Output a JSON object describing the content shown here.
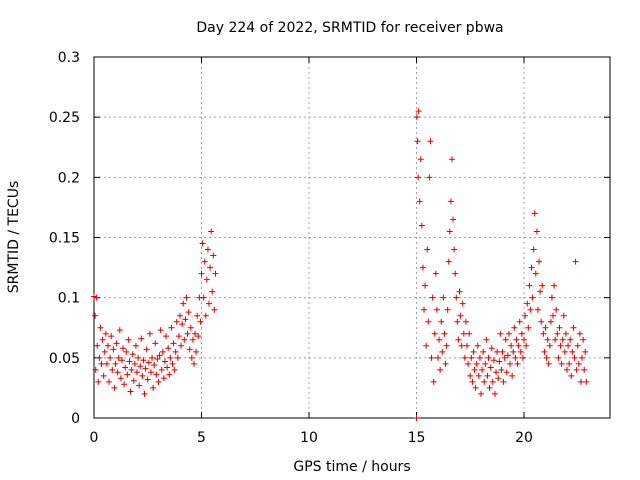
{
  "chart_data": {
    "type": "scatter",
    "title": "Day 224 of 2022, SRMTID for receiver pbwa",
    "xlabel": "GPS time / hours",
    "ylabel": "SRMTID / TECUs",
    "xlim": [
      0,
      24
    ],
    "ylim": [
      0,
      0.3
    ],
    "xticks": [
      0,
      5,
      10,
      15,
      20
    ],
    "xtick_labels": [
      "0",
      "5",
      "10",
      "15",
      "20"
    ],
    "yticks": [
      0,
      0.05,
      0.1,
      0.15,
      0.2,
      0.25,
      0.3
    ],
    "ytick_labels": [
      "0",
      "0.05",
      "0.1",
      "0.15",
      "0.2",
      "0.25",
      "0.3"
    ],
    "grid": true,
    "marker": "+",
    "series": [
      {
        "name": "SRMTID",
        "color": "#e00000",
        "points": [
          [
            0.0,
            0.101
          ],
          [
            0.05,
            0.085
          ],
          [
            0.08,
            0.04
          ],
          [
            0.12,
            0.1
          ],
          [
            0.15,
            0.06
          ],
          [
            0.2,
            0.03
          ],
          [
            0.25,
            0.05
          ],
          [
            0.3,
            0.075
          ],
          [
            0.35,
            0.045
          ],
          [
            0.4,
            0.065
          ],
          [
            0.45,
            0.035
          ],
          [
            0.5,
            0.055
          ],
          [
            0.55,
            0.07
          ],
          [
            0.6,
            0.045
          ],
          [
            0.65,
            0.06
          ],
          [
            0.7,
            0.03
          ],
          [
            0.75,
            0.05
          ],
          [
            0.8,
            0.068
          ],
          [
            0.85,
            0.04
          ],
          [
            0.9,
            0.057
          ],
          [
            0.95,
            0.025
          ],
          [
            1.0,
            0.045
          ],
          [
            1.05,
            0.062
          ],
          [
            1.1,
            0.038
          ],
          [
            1.15,
            0.05
          ],
          [
            1.2,
            0.073
          ],
          [
            1.25,
            0.033
          ],
          [
            1.3,
            0.048
          ],
          [
            1.35,
            0.058
          ],
          [
            1.4,
            0.028
          ],
          [
            1.45,
            0.042
          ],
          [
            1.5,
            0.055
          ],
          [
            1.55,
            0.036
          ],
          [
            1.6,
            0.065
          ],
          [
            1.65,
            0.047
          ],
          [
            1.7,
            0.022
          ],
          [
            1.75,
            0.04
          ],
          [
            1.8,
            0.053
          ],
          [
            1.85,
            0.031
          ],
          [
            1.9,
            0.045
          ],
          [
            1.95,
            0.06
          ],
          [
            2.0,
            0.038
          ],
          [
            2.05,
            0.05
          ],
          [
            2.1,
            0.027
          ],
          [
            2.15,
            0.043
          ],
          [
            2.2,
            0.066
          ],
          [
            2.25,
            0.035
          ],
          [
            2.3,
            0.048
          ],
          [
            2.35,
            0.02
          ],
          [
            2.4,
            0.041
          ],
          [
            2.45,
            0.057
          ],
          [
            2.5,
            0.032
          ],
          [
            2.55,
            0.046
          ],
          [
            2.6,
            0.07
          ],
          [
            2.65,
            0.038
          ],
          [
            2.7,
            0.05
          ],
          [
            2.75,
            0.025
          ],
          [
            2.8,
            0.044
          ],
          [
            2.85,
            0.062
          ],
          [
            2.9,
            0.036
          ],
          [
            2.95,
            0.049
          ],
          [
            3.0,
            0.03
          ],
          [
            3.05,
            0.052
          ],
          [
            3.1,
            0.073
          ],
          [
            3.15,
            0.04
          ],
          [
            3.2,
            0.055
          ],
          [
            3.25,
            0.033
          ],
          [
            3.3,
            0.047
          ],
          [
            3.35,
            0.068
          ],
          [
            3.4,
            0.042
          ],
          [
            3.45,
            0.058
          ],
          [
            3.5,
            0.036
          ],
          [
            3.55,
            0.05
          ],
          [
            3.6,
            0.075
          ],
          [
            3.65,
            0.045
          ],
          [
            3.7,
            0.062
          ],
          [
            3.75,
            0.04
          ],
          [
            3.8,
            0.055
          ],
          [
            3.85,
            0.08
          ],
          [
            3.9,
            0.05
          ],
          [
            3.95,
            0.068
          ],
          [
            4.0,
            0.085
          ],
          [
            4.05,
            0.06
          ],
          [
            4.1,
            0.078
          ],
          [
            4.15,
            0.095
          ],
          [
            4.2,
            0.065
          ],
          [
            4.25,
            0.082
          ],
          [
            4.3,
            0.1
          ],
          [
            4.35,
            0.07
          ],
          [
            4.4,
            0.088
          ],
          [
            4.45,
            0.057
          ],
          [
            4.5,
            0.075
          ],
          [
            4.55,
            0.05
          ],
          [
            4.6,
            0.065
          ],
          [
            4.65,
            0.045
          ],
          [
            4.7,
            0.07
          ],
          [
            4.75,
            0.055
          ],
          [
            4.8,
            0.085
          ],
          [
            4.85,
            0.068
          ],
          [
            4.9,
            0.1
          ],
          [
            4.95,
            0.08
          ],
          [
            5.0,
            0.12
          ],
          [
            5.05,
            0.145
          ],
          [
            5.1,
            0.1
          ],
          [
            5.15,
            0.13
          ],
          [
            5.2,
            0.085
          ],
          [
            5.25,
            0.115
          ],
          [
            5.3,
            0.14
          ],
          [
            5.35,
            0.095
          ],
          [
            5.4,
            0.125
          ],
          [
            5.45,
            0.155
          ],
          [
            5.5,
            0.105
          ],
          [
            5.55,
            0.135
          ],
          [
            5.6,
            0.09
          ],
          [
            5.65,
            0.12
          ],
          [
            15.0,
            0.0
          ],
          [
            15.02,
            0.25
          ],
          [
            15.05,
            0.23
          ],
          [
            15.08,
            0.2
          ],
          [
            15.1,
            0.255
          ],
          [
            15.15,
            0.18
          ],
          [
            15.2,
            0.215
          ],
          [
            15.25,
            0.16
          ],
          [
            15.3,
            0.125
          ],
          [
            15.35,
            0.09
          ],
          [
            15.4,
            0.11
          ],
          [
            15.45,
            0.06
          ],
          [
            15.5,
            0.14
          ],
          [
            15.55,
            0.08
          ],
          [
            15.6,
            0.2
          ],
          [
            15.65,
            0.23
          ],
          [
            15.7,
            0.05
          ],
          [
            15.75,
            0.1
          ],
          [
            15.8,
            0.03
          ],
          [
            15.85,
            0.07
          ],
          [
            15.9,
            0.12
          ],
          [
            15.95,
            0.09
          ],
          [
            16.0,
            0.05
          ],
          [
            16.05,
            0.065
          ],
          [
            16.1,
            0.04
          ],
          [
            16.15,
            0.08
          ],
          [
            16.2,
            0.055
          ],
          [
            16.25,
            0.1
          ],
          [
            16.3,
            0.07
          ],
          [
            16.35,
            0.045
          ],
          [
            16.4,
            0.06
          ],
          [
            16.45,
            0.09
          ],
          [
            16.5,
            0.13
          ],
          [
            16.55,
            0.155
          ],
          [
            16.6,
            0.18
          ],
          [
            16.65,
            0.215
          ],
          [
            16.7,
            0.165
          ],
          [
            16.75,
            0.14
          ],
          [
            16.8,
            0.12
          ],
          [
            16.85,
            0.1
          ],
          [
            16.9,
            0.08
          ],
          [
            16.95,
            0.065
          ],
          [
            17.0,
            0.105
          ],
          [
            17.05,
            0.085
          ],
          [
            17.1,
            0.06
          ],
          [
            17.15,
            0.095
          ],
          [
            17.2,
            0.07
          ],
          [
            17.25,
            0.05
          ],
          [
            17.3,
            0.08
          ],
          [
            17.35,
            0.06
          ],
          [
            17.4,
            0.045
          ],
          [
            17.45,
            0.07
          ],
          [
            17.5,
            0.035
          ],
          [
            17.55,
            0.05
          ],
          [
            17.6,
            0.03
          ],
          [
            17.65,
            0.055
          ],
          [
            17.7,
            0.04
          ],
          [
            17.75,
            0.025
          ],
          [
            17.8,
            0.045
          ],
          [
            17.85,
            0.06
          ],
          [
            17.9,
            0.035
          ],
          [
            17.95,
            0.05
          ],
          [
            18.0,
            0.02
          ],
          [
            18.05,
            0.04
          ],
          [
            18.1,
            0.055
          ],
          [
            18.15,
            0.03
          ],
          [
            18.2,
            0.045
          ],
          [
            18.25,
            0.065
          ],
          [
            18.3,
            0.035
          ],
          [
            18.35,
            0.05
          ],
          [
            18.4,
            0.025
          ],
          [
            18.45,
            0.042
          ],
          [
            18.5,
            0.058
          ],
          [
            18.55,
            0.03
          ],
          [
            18.6,
            0.048
          ],
          [
            18.65,
            0.02
          ],
          [
            18.7,
            0.038
          ],
          [
            18.75,
            0.055
          ],
          [
            18.8,
            0.033
          ],
          [
            18.85,
            0.047
          ],
          [
            18.9,
            0.07
          ],
          [
            18.95,
            0.04
          ],
          [
            19.0,
            0.055
          ],
          [
            19.05,
            0.03
          ],
          [
            19.1,
            0.05
          ],
          [
            19.15,
            0.065
          ],
          [
            19.2,
            0.038
          ],
          [
            19.25,
            0.052
          ],
          [
            19.3,
            0.07
          ],
          [
            19.35,
            0.045
          ],
          [
            19.4,
            0.06
          ],
          [
            19.45,
            0.035
          ],
          [
            19.5,
            0.055
          ],
          [
            19.55,
            0.075
          ],
          [
            19.6,
            0.05
          ],
          [
            19.65,
            0.065
          ],
          [
            19.7,
            0.045
          ],
          [
            19.75,
            0.06
          ],
          [
            19.8,
            0.08
          ],
          [
            19.85,
            0.055
          ],
          [
            19.9,
            0.07
          ],
          [
            19.95,
            0.05
          ],
          [
            20.0,
            0.065
          ],
          [
            20.05,
            0.085
          ],
          [
            20.1,
            0.06
          ],
          [
            20.15,
            0.095
          ],
          [
            20.2,
            0.075
          ],
          [
            20.25,
            0.11
          ],
          [
            20.3,
            0.09
          ],
          [
            20.35,
            0.125
          ],
          [
            20.4,
            0.1
          ],
          [
            20.45,
            0.14
          ],
          [
            20.5,
            0.17
          ],
          [
            20.55,
            0.12
          ],
          [
            20.6,
            0.155
          ],
          [
            20.65,
            0.09
          ],
          [
            20.7,
            0.13
          ],
          [
            20.75,
            0.105
          ],
          [
            20.8,
            0.08
          ],
          [
            20.85,
            0.11
          ],
          [
            20.9,
            0.07
          ],
          [
            20.95,
            0.055
          ],
          [
            21.0,
            0.075
          ],
          [
            21.05,
            0.05
          ],
          [
            21.1,
            0.065
          ],
          [
            21.15,
            0.045
          ],
          [
            21.2,
            0.06
          ],
          [
            21.25,
            0.08
          ],
          [
            21.3,
            0.1
          ],
          [
            21.35,
            0.085
          ],
          [
            21.4,
            0.11
          ],
          [
            21.45,
            0.065
          ],
          [
            21.5,
            0.09
          ],
          [
            21.55,
            0.07
          ],
          [
            21.6,
            0.05
          ],
          [
            21.65,
            0.075
          ],
          [
            21.7,
            0.06
          ],
          [
            21.75,
            0.045
          ],
          [
            21.8,
            0.065
          ],
          [
            21.85,
            0.085
          ],
          [
            21.9,
            0.055
          ],
          [
            21.95,
            0.07
          ],
          [
            22.0,
            0.04
          ],
          [
            22.05,
            0.06
          ],
          [
            22.1,
            0.045
          ],
          [
            22.15,
            0.065
          ],
          [
            22.2,
            0.035
          ],
          [
            22.25,
            0.055
          ],
          [
            22.3,
            0.075
          ],
          [
            22.35,
            0.05
          ],
          [
            22.4,
            0.13
          ],
          [
            22.45,
            0.04
          ],
          [
            22.5,
            0.06
          ],
          [
            22.55,
            0.045
          ],
          [
            22.6,
            0.07
          ],
          [
            22.65,
            0.03
          ],
          [
            22.7,
            0.05
          ],
          [
            22.75,
            0.065
          ],
          [
            22.8,
            0.04
          ],
          [
            22.85,
            0.055
          ],
          [
            22.9,
            0.03
          ]
        ]
      }
    ]
  }
}
